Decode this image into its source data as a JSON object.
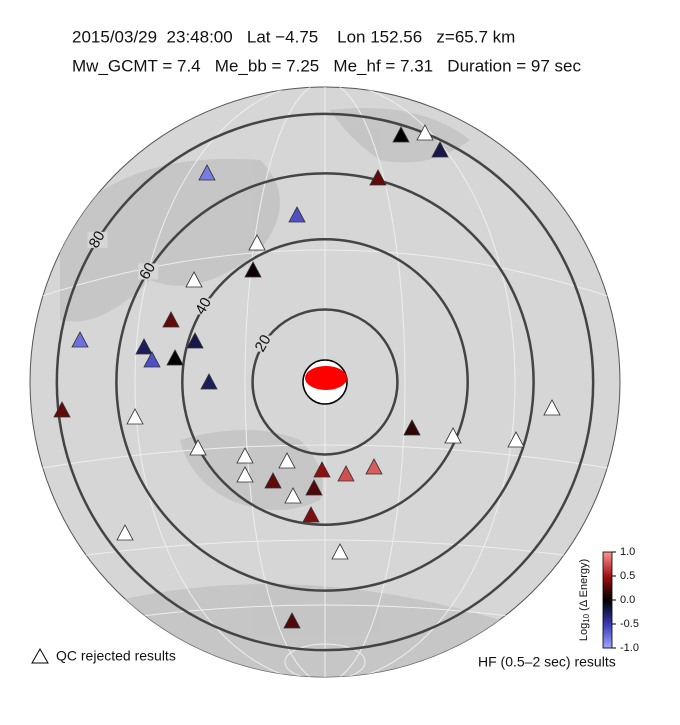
{
  "header": {
    "line1": "2015/03/29  23:48:00   Lat −4.75    Lon 152.56   z=65.7 km",
    "line2": "Mw_GCMT = 7.4   Me_bb = 7.25   Me_hf = 7.31   Duration = 97 sec"
  },
  "distance_rings": [
    20,
    40,
    60,
    80
  ],
  "stations": [
    0,
    null,
    -0.2,
    -0.8,
    0.3,
    -0.6,
    null,
    0.05,
    null,
    0.3,
    -0.75,
    -0.25,
    -0.2,
    -0.6,
    0,
    -0.25,
    0.3,
    null,
    0.15,
    null,
    null,
    null,
    null,
    null,
    null,
    0.45,
    0.75,
    0.8,
    null,
    0.3,
    0.25,
    null,
    0.4,
    null,
    null,
    0.25
  ],
  "colorbar": {
    "label_base": "Log",
    "label_sub": "10",
    "label_rest": " (Δ Energy)",
    "colors": [
      "#a0a8ff",
      "#3a3ab8",
      "#000000",
      "#a01010",
      "#ff9090"
    ],
    "lim": [
      -1,
      1
    ],
    "ticks": [
      {
        "value": 1,
        "label": "1.0"
      },
      {
        "value": 0.5,
        "label": "0.5"
      },
      {
        "value": 0,
        "label": "0.0"
      },
      {
        "value": -0.5,
        "label": "-0.5"
      },
      {
        "value": -1,
        "label": "-1.0"
      }
    ]
  },
  "legend": {
    "rejected": "QC rejected results",
    "hf": "HF (0.5–2 sec) results"
  }
}
